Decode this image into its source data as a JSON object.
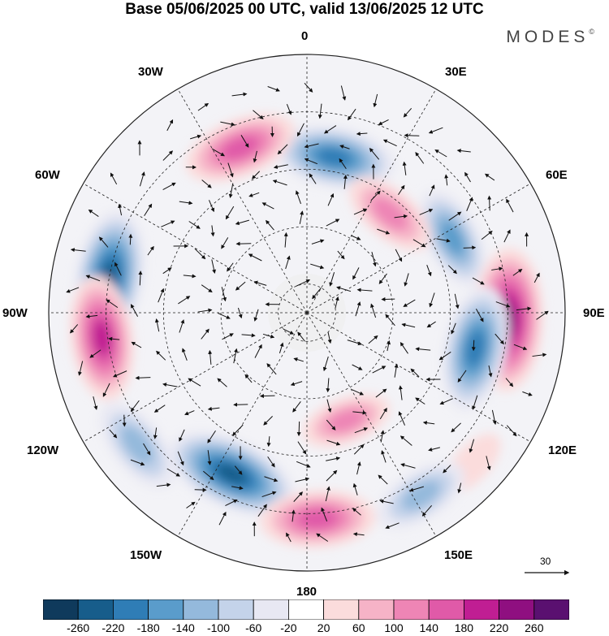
{
  "title": "Base 05/06/2025 00 UTC, valid 13/06/2025 12 UTC",
  "brand": "MODES",
  "brand_mark": "©",
  "longitude_labels": {
    "lon_0": "0",
    "lon_30e": "30E",
    "lon_60e": "60E",
    "lon_90e": "90E",
    "lon_120e": "120E",
    "lon_150e": "150E",
    "lon_180": "180",
    "lon_150w": "150W",
    "lon_120w": "120W",
    "lon_90w": "90W",
    "lon_60w": "60W",
    "lon_30w": "30W"
  },
  "vector_reference": "30",
  "colorbar": {
    "colors": [
      "#0f3a5c",
      "#175d8b",
      "#2f7db6",
      "#5a9ccb",
      "#94b9dc",
      "#c4d3ea",
      "#e8e8f3",
      "#ffffff",
      "#fbdcdc",
      "#f6b3c7",
      "#ee85b5",
      "#e05aa8",
      "#c01e93",
      "#8f0f80",
      "#5a1070"
    ],
    "ticks": [
      "-260",
      "-220",
      "-180",
      "-140",
      "-100",
      "-60",
      "-20",
      "20",
      "60",
      "100",
      "140",
      "180",
      "220",
      "260"
    ]
  },
  "anomaly_centers": [
    {
      "lon": 10,
      "lat": 35,
      "value": -190
    },
    {
      "lon": 63,
      "lat": 33,
      "value": -140
    },
    {
      "lon": -22,
      "lat": 28,
      "value": 170
    },
    {
      "lon": 40,
      "lat": 45,
      "value": 120
    },
    {
      "lon": -80,
      "lat": 20,
      "value": -230
    },
    {
      "lon": 92,
      "lat": 20,
      "value": 250
    },
    {
      "lon": -97,
      "lat": 18,
      "value": 200
    },
    {
      "lon": 102,
      "lat": 30,
      "value": -200
    },
    {
      "lon": -155,
      "lat": 28,
      "value": -230
    },
    {
      "lon": 160,
      "lat": 50,
      "value": 100
    },
    {
      "lon": -128,
      "lat": 15,
      "value": -130
    },
    {
      "lon": 132,
      "lat": 12,
      "value": 40
    },
    {
      "lon": 177,
      "lat": 18,
      "value": 170
    },
    {
      "lon": 148,
      "lat": 15,
      "value": -120
    }
  ]
}
